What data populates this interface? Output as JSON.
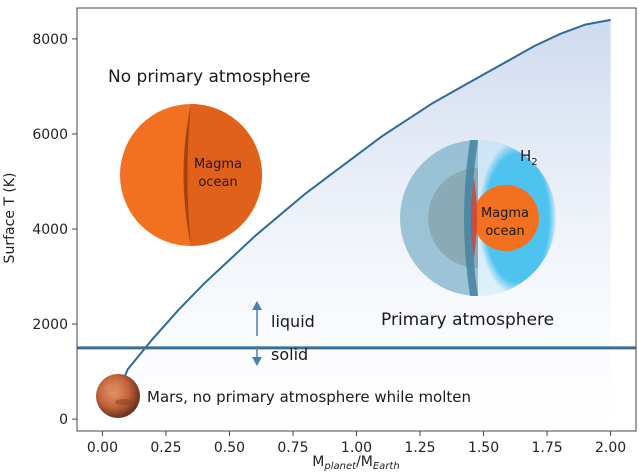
{
  "chart_data": {
    "type": "line",
    "xlabel": "M",
    "xlabel_sub1": "planet",
    "xlabel_sep": "/M",
    "xlabel_sub2": "Earth",
    "ylabel": "Surface T (K)",
    "xlim": [
      -0.1,
      2.1
    ],
    "ylim": [
      -250,
      8650
    ],
    "x_ticks": [
      0.0,
      0.25,
      0.5,
      0.75,
      1.0,
      1.25,
      1.5,
      1.75,
      2.0
    ],
    "x_tick_labels": [
      "0.00",
      "0.25",
      "0.50",
      "0.75",
      "1.00",
      "1.25",
      "1.50",
      "1.75",
      "2.00"
    ],
    "y_ticks": [
      0,
      2000,
      4000,
      6000,
      8000
    ],
    "y_tick_labels": [
      "0",
      "2000",
      "4000",
      "6000",
      "8000"
    ],
    "grid": false,
    "series": [
      {
        "x": [
          0.08,
          0.1,
          0.2,
          0.3,
          0.4,
          0.5,
          0.6,
          0.7,
          0.8,
          0.9,
          1.0,
          1.1,
          1.2,
          1.3,
          1.4,
          1.5,
          1.6,
          1.7,
          1.8,
          1.9,
          2.0
        ],
        "values": [
          800,
          1050,
          1700,
          2300,
          2850,
          3350,
          3850,
          4300,
          4750,
          5150,
          5550,
          5950,
          6300,
          6650,
          6950,
          7250,
          7550,
          7850,
          8100,
          8300,
          8400
        ],
        "color": "#2e6b94"
      }
    ],
    "horizontal_line": {
      "y": 1500,
      "color": "#3a6d96"
    },
    "annotations": {
      "no_primary": "No primary atmosphere",
      "primary": "Primary atmosphere",
      "magma_1": "Magma",
      "ocean_1": "ocean",
      "magma_2": "Magma",
      "ocean_2": "ocean",
      "h2_main": "H",
      "h2_sub": "2",
      "liquid": "liquid",
      "solid": "solid",
      "mars": "Mars, no primary atmosphere while molten"
    },
    "colors": {
      "magma": "#f37021",
      "atmosphere": "#4fc3f0",
      "fill": "#c9d6ec",
      "axes": "#444444"
    }
  }
}
